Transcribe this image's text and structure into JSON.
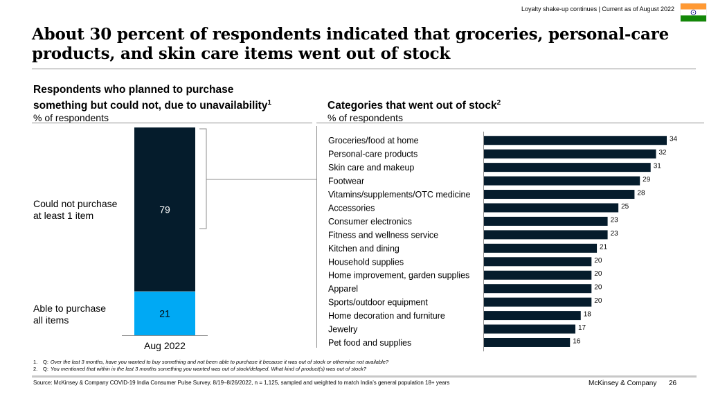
{
  "header": {
    "tracker": "Loyalty shake-up continues | Current as of August 2022",
    "flag_icon": "india-flag-icon",
    "flag_colors": {
      "saffron": "#FF9933",
      "white": "#FFFFFF",
      "green": "#138808",
      "chakra": "#000080"
    },
    "title": "About 30 percent of respondents indicated that groceries, personal-care products, and skin care items went out of stock"
  },
  "left_panel": {
    "title_line1": "Respondents who planned to purchase",
    "title_line2": "something but could not, due to unavailability",
    "title_sup": "1",
    "unit": "% of respondents",
    "segment_labels": [
      {
        "line1": "Could not purchase",
        "line2": "at least 1 item"
      },
      {
        "line1": "Able to purchase",
        "line2": "all items"
      }
    ]
  },
  "right_panel": {
    "title": "Categories that went out of stock",
    "title_sup": "2",
    "unit": "% of respondents"
  },
  "chart_data": [
    {
      "type": "bar",
      "orientation": "vertical-stacked",
      "title": "Respondents who planned to purchase something but could not, due to unavailability",
      "ylabel": "% of respondents",
      "categories": [
        "Aug 2022"
      ],
      "series": [
        {
          "name": "Could not purchase at least 1 item",
          "values": [
            79
          ],
          "color": "#051C2C"
        },
        {
          "name": "Able to purchase all items",
          "values": [
            21
          ],
          "color": "#00A9F4"
        }
      ],
      "ylim": [
        0,
        100
      ]
    },
    {
      "type": "bar",
      "orientation": "horizontal",
      "title": "Categories that went out of stock",
      "xlabel": "% of respondents",
      "categories": [
        "Groceries/food at home",
        "Personal-care products",
        "Skin care and makeup",
        "Footwear",
        "Vitamins/supplements/OTC medicine",
        "Accessories",
        "Consumer electronics",
        "Fitness and wellness service",
        "Kitchen and dining",
        "Household supplies",
        "Home improvement, garden supplies",
        "Apparel",
        "Sports/outdoor equipment",
        "Home decoration and furniture",
        "Jewelry",
        "Pet food and supplies"
      ],
      "values": [
        34,
        32,
        31,
        29,
        28,
        25,
        23,
        23,
        21,
        20,
        20,
        20,
        20,
        18,
        17,
        16
      ],
      "color": "#051C2C",
      "xlim": [
        0,
        34
      ]
    }
  ],
  "footnotes": [
    {
      "num": "1.",
      "q": "Q:",
      "text": "Over the last 3 months, have you wanted to buy something and not been able to purchase it because it was out of stock or otherwise not available?"
    },
    {
      "num": "2.",
      "q": "Q:",
      "text": "You mentioned that within in the last 3 months something you wanted was out of stock/delayed. What kind of product(s) was out of stock?"
    }
  ],
  "footer": {
    "source": "Source: McKinsey & Company COVID-19 India Consumer Pulse Survey, 8/19–8/26/2022, n = 1,125, sampled and weighted to match India’s general population 18+ years",
    "brand": "McKinsey & Company",
    "page": "26"
  }
}
